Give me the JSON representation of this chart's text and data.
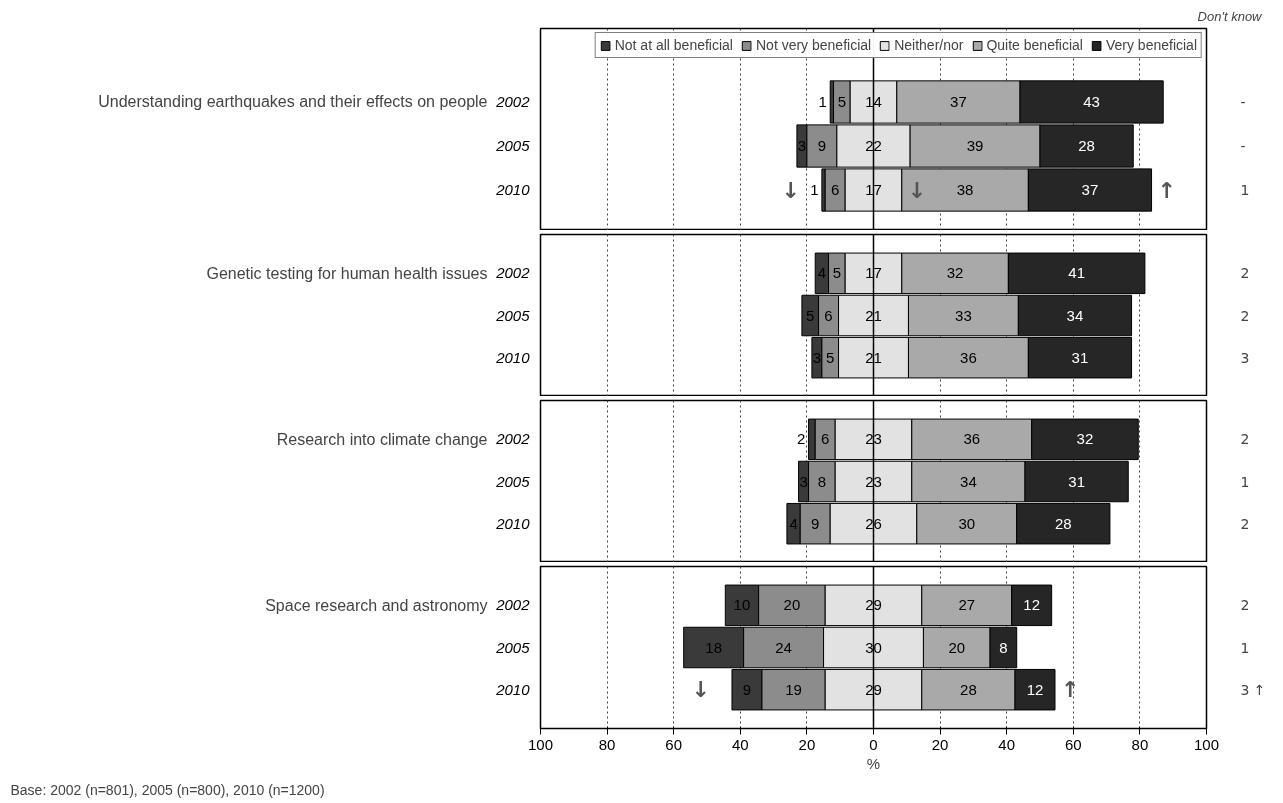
{
  "chart_data": [
    {
      "type": "bar",
      "orientation": "horizontal",
      "title": "Understanding earthquakes and their effects on people",
      "categories": [
        "2002",
        "2005",
        "2010"
      ],
      "series": [
        {
          "name": "Not at all beneficial",
          "color": "#3a3a3a",
          "values": [
            1,
            3,
            1
          ],
          "base": [
            -13,
            -23,
            -15.5
          ]
        },
        {
          "name": "Not very beneficial",
          "color": "#8c8c8c",
          "values": [
            5,
            9,
            6
          ],
          "base": [
            -12,
            -20,
            -14.5
          ]
        },
        {
          "name": "Neither/nor",
          "color": "#e2e2e2",
          "values": [
            14,
            22,
            17
          ],
          "base": [
            -7,
            -11,
            -8.5
          ]
        },
        {
          "name": "Quite beneficial",
          "color": "#a9a9a9",
          "values": [
            37,
            39,
            38
          ],
          "base": [
            7,
            11,
            8.5
          ]
        },
        {
          "name": "Very beneficial",
          "color": "#262626",
          "values": [
            43,
            28,
            37
          ],
          "base": [
            44,
            50,
            46.5
          ]
        }
      ],
      "data_labels": true,
      "legend": "top",
      "grid": "x",
      "tick_labels": "y",
      "xlim": [
        -100,
        100
      ],
      "xticks": [
        -100,
        -80,
        -60,
        -40,
        -20,
        0,
        20,
        40,
        60,
        80,
        100
      ],
      "ref_lines": [
        {
          "axis": "x",
          "value": 0,
          "color": "#000000",
          "line_style": "solid"
        }
      ],
      "annotations": [
        "Don't know",
        "-",
        "-",
        "1",
        {
          "text": "↓",
          "x": -15.5,
          "y": "2010"
        },
        {
          "text": "↓",
          "x": 8.5,
          "y": "2010"
        },
        {
          "text": "↑",
          "x": 83.5,
          "y": "2010"
        }
      ]
    },
    {
      "type": "bar",
      "orientation": "horizontal",
      "title": "Genetic testing for human health issues",
      "categories": [
        "2002",
        "2005",
        "2010"
      ],
      "series": [
        {
          "color": "#3a3a3a",
          "values": [
            4,
            5,
            3
          ],
          "base": [
            -17.5,
            -21.5,
            -18.5
          ]
        },
        {
          "color": "#8c8c8c",
          "values": [
            5,
            6,
            5
          ],
          "base": [
            -13.5,
            -16.5,
            -15.5
          ]
        },
        {
          "color": "#e2e2e2",
          "values": [
            17,
            21,
            21
          ],
          "base": [
            -8.5,
            -10.5,
            -10.5
          ]
        },
        {
          "color": "#a9a9a9",
          "values": [
            32,
            33,
            36
          ],
          "base": [
            8.5,
            10.5,
            10.5
          ]
        },
        {
          "color": "#262626",
          "values": [
            41,
            34,
            31
          ],
          "base": [
            40.5,
            43.5,
            46.5
          ]
        }
      ],
      "data_labels": true,
      "grid": "x",
      "tick_labels": "y",
      "xlim": [
        -100,
        100
      ],
      "xticks": [
        -100,
        -80,
        -60,
        -40,
        -20,
        0,
        20,
        40,
        60,
        80,
        100
      ],
      "ref_lines": [
        {
          "axis": "x",
          "value": 0,
          "color": "#000000",
          "line_style": "solid"
        }
      ],
      "annotations": [
        "2",
        "2",
        "3"
      ]
    },
    {
      "type": "bar",
      "orientation": "horizontal",
      "title": "Research into climate change",
      "categories": [
        "2002",
        "2005",
        "2010"
      ],
      "series": [
        {
          "color": "#3a3a3a",
          "values": [
            2,
            3,
            4
          ],
          "base": [
            -19.5,
            -22.5,
            -26
          ]
        },
        {
          "color": "#8c8c8c",
          "values": [
            6,
            8,
            9
          ],
          "base": [
            -17.5,
            -19.5,
            -22
          ]
        },
        {
          "color": "#e2e2e2",
          "values": [
            23,
            23,
            26
          ],
          "base": [
            -11.5,
            -11.5,
            -13
          ]
        },
        {
          "color": "#a9a9a9",
          "values": [
            36,
            34,
            30
          ],
          "base": [
            11.5,
            11.5,
            13
          ]
        },
        {
          "color": "#262626",
          "values": [
            32,
            31,
            28
          ],
          "base": [
            47.5,
            45.5,
            43
          ]
        }
      ],
      "data_labels": true,
      "grid": "x",
      "tick_labels": "y",
      "xlim": [
        -100,
        100
      ],
      "xticks": [
        -100,
        -80,
        -60,
        -40,
        -20,
        0,
        20,
        40,
        60,
        80,
        100
      ],
      "ref_lines": [
        {
          "axis": "x",
          "value": 0,
          "color": "#000000",
          "line_style": "solid"
        }
      ],
      "annotations": [
        "2",
        "1",
        "2"
      ]
    },
    {
      "type": "bar",
      "orientation": "horizontal",
      "title": "Space research and astronomy",
      "categories": [
        "2002",
        "2005",
        "2010"
      ],
      "series": [
        {
          "color": "#3a3a3a",
          "values": [
            10,
            18,
            9
          ],
          "base": [
            -44.5,
            -57,
            -42.5
          ]
        },
        {
          "color": "#8c8c8c",
          "values": [
            20,
            24,
            19
          ],
          "base": [
            -34.5,
            -39,
            -33.5
          ]
        },
        {
          "color": "#e2e2e2",
          "values": [
            29,
            30,
            29
          ],
          "base": [
            -14.5,
            -15,
            -14.5
          ]
        },
        {
          "color": "#a9a9a9",
          "values": [
            27,
            20,
            28
          ],
          "base": [
            14.5,
            15,
            14.5
          ]
        },
        {
          "color": "#262626",
          "values": [
            12,
            8,
            12
          ],
          "base": [
            41.5,
            35,
            42.5
          ]
        }
      ],
      "data_labels": true,
      "grid": "x",
      "xlabel": "%",
      "xlim": [
        -100,
        100
      ],
      "xticks": [
        {
          "value": -100,
          "label": "100"
        },
        {
          "value": -80,
          "label": "80"
        },
        {
          "value": -60,
          "label": "60"
        },
        {
          "value": -40,
          "label": "40"
        },
        {
          "value": -20,
          "label": "20"
        },
        0,
        20,
        40,
        60,
        80,
        100
      ],
      "ref_lines": [
        {
          "axis": "x",
          "value": 0,
          "color": "#000000",
          "line_style": "solid"
        }
      ],
      "annotations": [
        "Base: 2002 (n=801), 2005 (n=800), 2010 (n=1200)",
        "2",
        "1",
        "3 ↑",
        {
          "text": "↓",
          "x": -42.5,
          "y": "2010"
        },
        {
          "text": "↑",
          "x": 54.5,
          "y": "2010"
        }
      ]
    }
  ]
}
